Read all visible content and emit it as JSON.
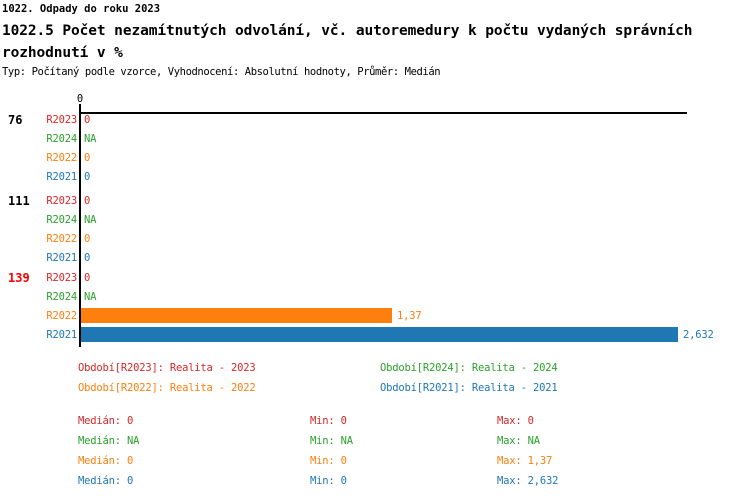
{
  "header": {
    "line1": "1022. Odpady do roku 2023",
    "line2": "1022.5 Počet nezamítnutých odvolání, vč. autoremedury k počtu vydaných správních",
    "line3": "rozhodnutí v %",
    "meta": "Typ: Počítaný podle vzorce, Vyhodnocení: Absolutní hodnoty, Průměr: Medián"
  },
  "colors": {
    "R2023": "#d62728",
    "R2024": "#2ca02c",
    "R2022": "#ff7f0e",
    "R2021": "#1f77b4",
    "highlight": "#ff0000",
    "group_label": "#000000",
    "axis": "#000000"
  },
  "chart_data": {
    "type": "bar",
    "orientation": "horizontal",
    "title": "1022.5 Počet nezamítnutých odvolání, vč. autoremedury k počtu vydaných správních rozhodnutí v %",
    "xlabel": "",
    "ylabel": "",
    "xlim": [
      0,
      2.68
    ],
    "axis_ticks": [
      {
        "value": 0,
        "label": "0"
      }
    ],
    "grid": false,
    "legend_position": "bottom",
    "series_names": [
      "R2023",
      "R2024",
      "R2022",
      "R2021"
    ],
    "groups": [
      {
        "label": "76",
        "highlighted": false,
        "rows": [
          {
            "series": "R2023",
            "value": 0,
            "display": "0"
          },
          {
            "series": "R2024",
            "value": null,
            "display": "NA"
          },
          {
            "series": "R2022",
            "value": 0,
            "display": "0"
          },
          {
            "series": "R2021",
            "value": 0,
            "display": "0"
          }
        ]
      },
      {
        "label": "111",
        "highlighted": false,
        "rows": [
          {
            "series": "R2023",
            "value": 0,
            "display": "0"
          },
          {
            "series": "R2024",
            "value": null,
            "display": "NA"
          },
          {
            "series": "R2022",
            "value": 0,
            "display": "0"
          },
          {
            "series": "R2021",
            "value": 0,
            "display": "0"
          }
        ]
      },
      {
        "label": "139",
        "highlighted": true,
        "rows": [
          {
            "series": "R2023",
            "value": 0,
            "display": "0"
          },
          {
            "series": "R2024",
            "value": null,
            "display": "NA"
          },
          {
            "series": "R2022",
            "value": 1.37,
            "display": "1,37"
          },
          {
            "series": "R2021",
            "value": 2.632,
            "display": "2,632"
          }
        ]
      }
    ]
  },
  "legend": [
    {
      "series": "R2023",
      "label": "Období[R2023]: Realita - 2023"
    },
    {
      "series": "R2024",
      "label": "Období[R2024]: Realita - 2024"
    },
    {
      "series": "R2022",
      "label": "Období[R2022]: Realita - 2022"
    },
    {
      "series": "R2021",
      "label": "Období[R2021]: Realita - 2021"
    }
  ],
  "stats": [
    {
      "series": "R2023",
      "median": "Medián: 0",
      "min": "Min: 0",
      "max": "Max: 0"
    },
    {
      "series": "R2024",
      "median": "Medián: NA",
      "min": "Min: NA",
      "max": "Max: NA"
    },
    {
      "series": "R2022",
      "median": "Medián: 0",
      "min": "Min: 0",
      "max": "Max: 1,37"
    },
    {
      "series": "R2021",
      "median": "Medián: 0",
      "min": "Min: 0",
      "max": "Max: 2,632"
    }
  ]
}
